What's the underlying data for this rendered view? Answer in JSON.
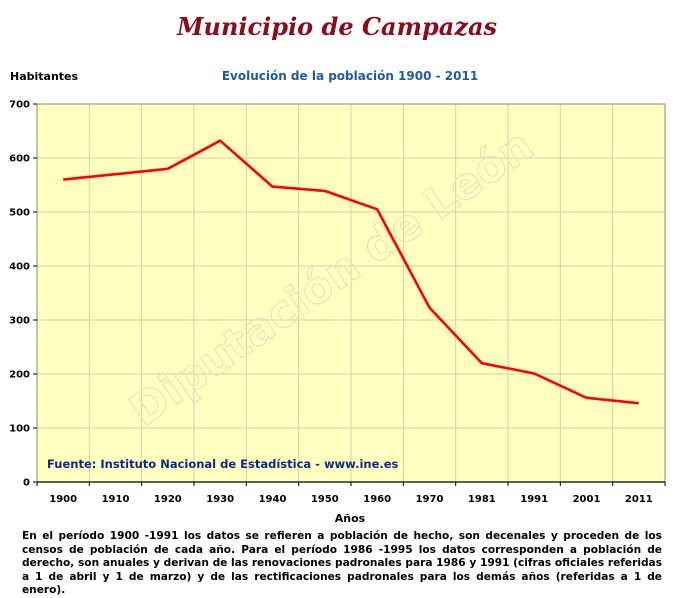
{
  "header": {
    "title": "Municipio de Campazas"
  },
  "chart_data": {
    "type": "line",
    "title": "Evolución de la población 1900 - 2011",
    "ylabel": "Habitantes",
    "xlabel": "Años",
    "categories": [
      "1900",
      "1910",
      "1920",
      "1930",
      "1940",
      "1950",
      "1960",
      "1970",
      "1981",
      "1991",
      "2001",
      "2011"
    ],
    "series": [
      {
        "values": [
          560,
          570,
          580,
          632,
          547,
          539,
          505,
          323,
          220,
          201,
          156,
          146
        ]
      }
    ],
    "ylim": [
      0,
      700
    ],
    "yticks": [
      0,
      100,
      200,
      300,
      400,
      500,
      600,
      700
    ],
    "grid": true,
    "colors": {
      "line": "#ff0000",
      "plot_bg": "#ffffc0",
      "grid": "#d2d2a8"
    }
  },
  "source": "Fuente: Instituto Nacional de Estadística - www.ine.es",
  "watermark": "Diputación de León",
  "note": "En el período 1900 -1991 los datos se refieren a población de hecho, son decenales y proceden de los censos de población de cada año. Para el período 1986 -1995 los datos corresponden a población de derecho, son anuales y derivan de las renovaciones padronales para 1986 y 1991 (cifras oficiales referidas a 1 de abril y 1 de marzo) y de las rectificaciones padronales para los demás años (referidas a 1 de enero)."
}
